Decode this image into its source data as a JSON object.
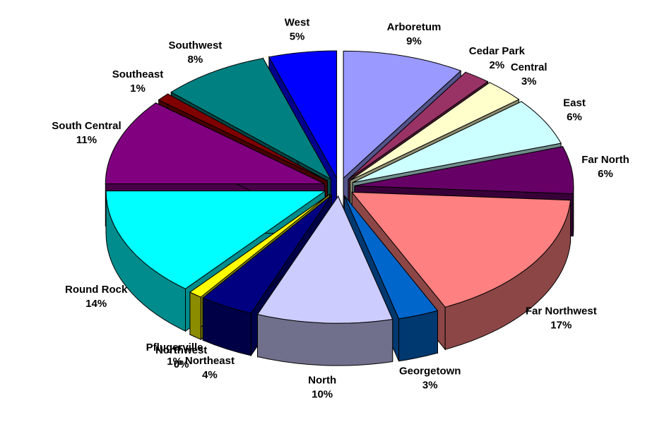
{
  "chart_data": {
    "type": "pie3d",
    "categories": [
      "Arboretum",
      "Cedar Park",
      "Central",
      "East",
      "Far North",
      "Far Northwest",
      "Georgetown",
      "North",
      "Northeast",
      "Northwest",
      "Pflugerville",
      "Round Rock",
      "South Central",
      "Southeast",
      "Southwest",
      "West"
    ],
    "values": [
      9,
      2,
      3,
      6,
      6,
      17,
      3,
      10,
      4,
      0,
      1,
      14,
      11,
      1,
      8,
      5
    ],
    "value_labels": [
      "9%",
      "2%",
      "3%",
      "6%",
      "6%",
      "17%",
      "3%",
      "10%",
      "4%",
      "0%",
      "1%",
      "14%",
      "11%",
      "1%",
      "8%",
      "5%"
    ],
    "colors": [
      "#9999ff",
      "#993366",
      "#ffffcc",
      "#ccffff",
      "#660066",
      "#ff8080",
      "#0066cc",
      "#ccccff",
      "#000080",
      "#ff00ff",
      "#ffff00",
      "#00ffff",
      "#800080",
      "#800000",
      "#008080",
      "#0000ff"
    ]
  }
}
